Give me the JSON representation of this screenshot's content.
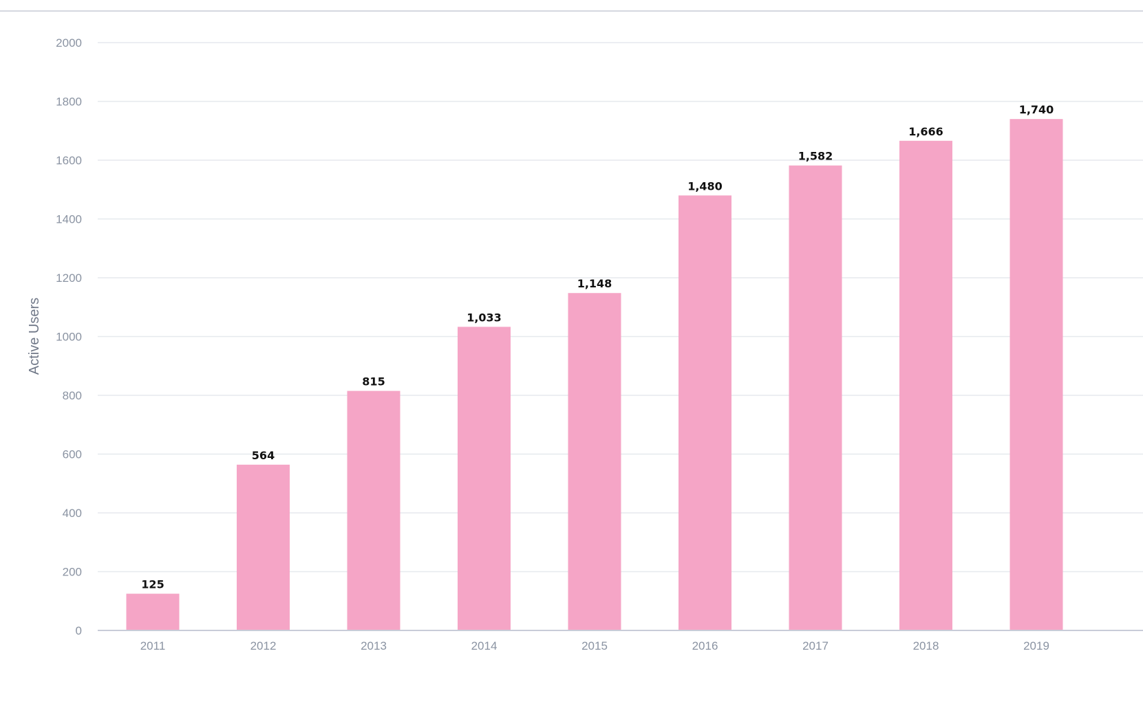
{
  "chart_data": {
    "type": "bar",
    "title": "",
    "xlabel": "",
    "ylabel": "Active Users",
    "categories": [
      "2011",
      "2012",
      "2013",
      "2014",
      "2015",
      "2016",
      "2017",
      "2018",
      "2019"
    ],
    "values": [
      125,
      564,
      815,
      1033,
      1148,
      1480,
      1582,
      1666,
      1740
    ],
    "data_labels": [
      "125",
      "564",
      "815",
      "1,033",
      "1,148",
      "1,480",
      "1,582",
      "1,666",
      "1,740"
    ],
    "ylim": [
      0,
      2000
    ],
    "yticks": [
      "0",
      "200",
      "400",
      "600",
      "800",
      "1000",
      "1200",
      "1400",
      "1600",
      "1800",
      "2000"
    ],
    "grid": true,
    "legend": "none",
    "colors": {
      "bar": "#f5a5c6",
      "grid": "#e6e9ee",
      "axis_text": "#8a93a2",
      "label_text": "#111111"
    }
  }
}
